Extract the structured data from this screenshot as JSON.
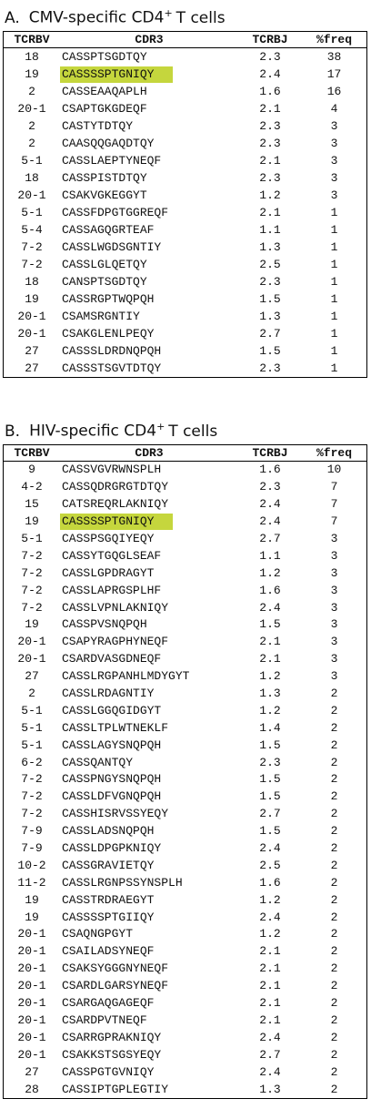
{
  "sections": [
    {
      "label": "A.",
      "title": "CMV-specific CD4",
      "superscript": "+",
      "title_end": "T cells",
      "table": {
        "columns": [
          "TCRBV",
          "CDR3",
          "TCRBJ",
          "%freq"
        ],
        "highlight_row": 1,
        "highlight_color": "#c5d63d",
        "rows": [
          [
            "18",
            "CASSPTSGDTQY",
            "2.3",
            "38"
          ],
          [
            "19",
            "CASSSSPTGNIQY",
            "2.4",
            "17"
          ],
          [
            "2",
            "CASSEAAQAPLH",
            "1.6",
            "16"
          ],
          [
            "20-1",
            "CSAPTGKGDEQF",
            "2.1",
            "4"
          ],
          [
            "2",
            "CASTYTDTQY",
            "2.3",
            "3"
          ],
          [
            "2",
            "CAASQQGAQDTQY",
            "2.3",
            "3"
          ],
          [
            "5-1",
            "CASSLAEPTYNEQF",
            "2.1",
            "3"
          ],
          [
            "18",
            "CASSPISTDTQY",
            "2.3",
            "3"
          ],
          [
            "20-1",
            "CSAKVGKEGGYT",
            "1.2",
            "3"
          ],
          [
            "5-1",
            "CASSFDPGTGGREQF",
            "2.1",
            "1"
          ],
          [
            "5-4",
            "CASSAGQGRTEAF",
            "1.1",
            "1"
          ],
          [
            "7-2",
            "CASSLWGDSGNTIY",
            "1.3",
            "1"
          ],
          [
            "7-2",
            "CASSLGLQETQY",
            "2.5",
            "1"
          ],
          [
            "18",
            "CANSPTSGDTQY",
            "2.3",
            "1"
          ],
          [
            "19",
            "CASSRGPTWQPQH",
            "1.5",
            "1"
          ],
          [
            "20-1",
            "CSAMSRGNTIY",
            "1.3",
            "1"
          ],
          [
            "20-1",
            "CSAKGLENLPEQY",
            "2.7",
            "1"
          ],
          [
            "27",
            "CASSSLDRDNQPQH",
            "1.5",
            "1"
          ],
          [
            "27",
            "CASSSTSGVTDTQY",
            "2.3",
            "1"
          ]
        ]
      }
    },
    {
      "label": "B.",
      "title": "HIV-specific CD4",
      "superscript": "+",
      "title_end": "T cells",
      "table": {
        "columns": [
          "TCRBV",
          "CDR3",
          "TCRBJ",
          "%freq"
        ],
        "highlight_row": 3,
        "highlight_color": "#c5d63d",
        "rows": [
          [
            "9",
            "CASSVGVRWNSPLH",
            "1.6",
            "10"
          ],
          [
            "4-2",
            "CASSQDRGRGTDTQY",
            "2.3",
            "7"
          ],
          [
            "15",
            "CATSREQRLAKNIQY",
            "2.4",
            "7"
          ],
          [
            "19",
            "CASSSSPTGNIQY",
            "2.4",
            "7"
          ],
          [
            "5-1",
            "CASSPSGQIYEQY",
            "2.7",
            "3"
          ],
          [
            "7-2",
            "CASSYTGQGLSEAF",
            "1.1",
            "3"
          ],
          [
            "7-2",
            "CASSLGPDRAGYT",
            "1.2",
            "3"
          ],
          [
            "7-2",
            "CASSLAPRGSPLHF",
            "1.6",
            "3"
          ],
          [
            "7-2",
            "CASSLVPNLAKNIQY",
            "2.4",
            "3"
          ],
          [
            "19",
            "CASSPVSNQPQH",
            "1.5",
            "3"
          ],
          [
            "20-1",
            "CSAPYRAGPHYNEQF",
            "2.1",
            "3"
          ],
          [
            "20-1",
            "CSARDVASGDNEQF",
            "2.1",
            "3"
          ],
          [
            "27",
            "CASSLRGPANHLMDYGYT",
            "1.2",
            "3"
          ],
          [
            "2",
            "CASSLRDAGNTIY",
            "1.3",
            "2"
          ],
          [
            "5-1",
            "CASSLGGQGIDGYT",
            "1.2",
            "2"
          ],
          [
            "5-1",
            "CASSLTPLWTNEKLF",
            "1.4",
            "2"
          ],
          [
            "5-1",
            "CASSLAGYSNQPQH",
            "1.5",
            "2"
          ],
          [
            "6-2",
            "CASSQANTQY",
            "2.3",
            "2"
          ],
          [
            "7-2",
            "CASSPNGYSNQPQH",
            "1.5",
            "2"
          ],
          [
            "7-2",
            "CASSLDFVGNQPQH",
            "1.5",
            "2"
          ],
          [
            "7-2",
            "CASSHISRVSSYEQY",
            "2.7",
            "2"
          ],
          [
            "7-9",
            "CASSLADSNQPQH",
            "1.5",
            "2"
          ],
          [
            "7-9",
            "CASSLDPGPKNIQY",
            "2.4",
            "2"
          ],
          [
            "10-2",
            "CASSGRAVIETQY",
            "2.5",
            "2"
          ],
          [
            "11-2",
            "CASSLRGNPSSYNSPLH",
            "1.6",
            "2"
          ],
          [
            "19",
            "CASSTRDRAEGYT",
            "1.2",
            "2"
          ],
          [
            "19",
            "CASSSSPTGIIQY",
            "2.4",
            "2"
          ],
          [
            "20-1",
            "CSAQNGPGYT",
            "1.2",
            "2"
          ],
          [
            "20-1",
            "CSAILADSYNEQF",
            "2.1",
            "2"
          ],
          [
            "20-1",
            "CSAKSYGGGNYNEQF",
            "2.1",
            "2"
          ],
          [
            "20-1",
            "CSARDLGARSYNEQF",
            "2.1",
            "2"
          ],
          [
            "20-1",
            "CSARGAQGAGEQF",
            "2.1",
            "2"
          ],
          [
            "20-1",
            "CSARDPVTNEQF",
            "2.1",
            "2"
          ],
          [
            "20-1",
            "CSARRGPRAKNIQY",
            "2.4",
            "2"
          ],
          [
            "20-1",
            "CSAKKSTSGSYEQY",
            "2.7",
            "2"
          ],
          [
            "27",
            "CASSPGTGVNIQY",
            "2.4",
            "2"
          ],
          [
            "28",
            "CASSIPTGPLEGTIY",
            "1.3",
            "2"
          ]
        ]
      }
    }
  ]
}
